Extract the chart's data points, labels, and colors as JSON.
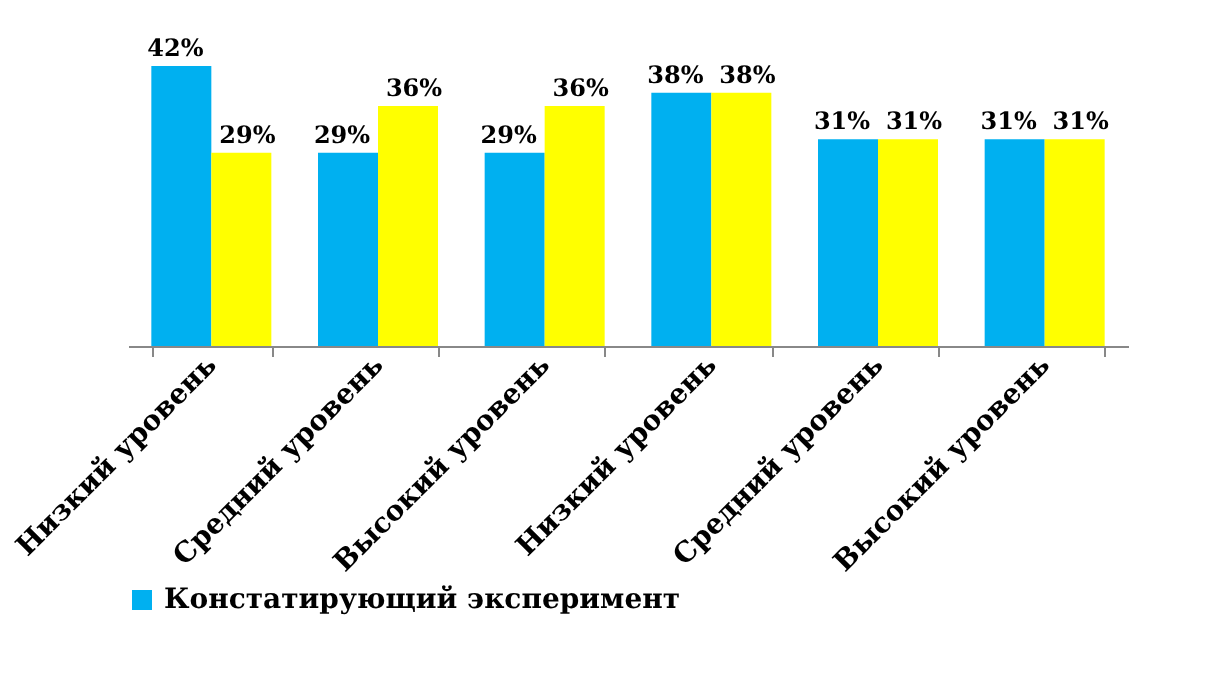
{
  "chart_data": {
    "type": "bar",
    "categories": [
      "Низкий уровень",
      "Средний уровень",
      "Высокий уровень",
      "Низкий уровень",
      "Средний уровень",
      "Высокий уровень"
    ],
    "series": [
      {
        "name": "Констатирующий эксперимент",
        "color": "#00b0f0",
        "values": [
          42,
          29,
          29,
          38,
          31,
          31
        ],
        "value_labels": [
          "42%",
          "29%",
          "29%",
          "38%",
          "31%",
          "31%"
        ]
      },
      {
        "color": "#ffff00",
        "values": [
          29,
          36,
          36,
          38,
          31,
          31
        ],
        "value_labels": [
          "29%",
          "36%",
          "36%",
          "38%",
          "31%",
          "31%"
        ]
      }
    ],
    "tick_labels": "x",
    "grid": false,
    "legend": "bottom"
  }
}
